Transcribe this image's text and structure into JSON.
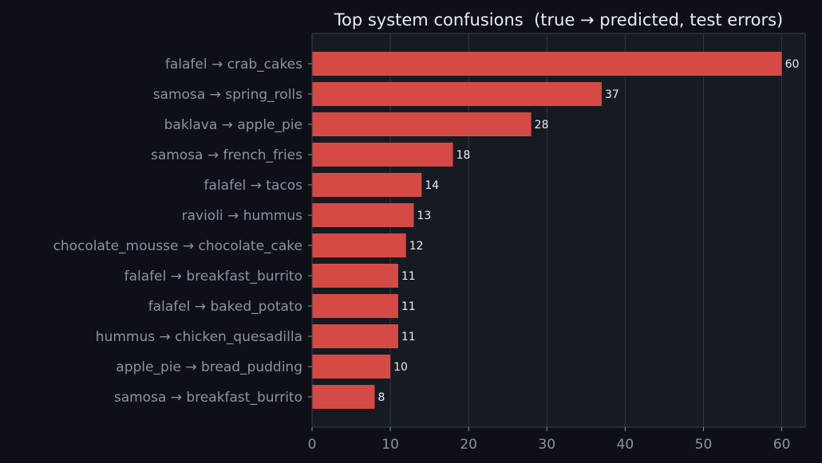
{
  "chart_data": {
    "type": "bar",
    "orientation": "horizontal",
    "title": "Top system confusions  (true → predicted, test errors)",
    "xlabel": "",
    "ylabel": "",
    "xlim": [
      0,
      63
    ],
    "xticks": [
      "0",
      "10",
      "20",
      "30",
      "40",
      "50",
      "60"
    ],
    "grid": "vertical",
    "categories": [
      "falafel → crab_cakes",
      "samosa → spring_rolls",
      "baklava → apple_pie",
      "samosa → french_fries",
      "falafel → tacos",
      "ravioli → hummus",
      "chocolate_mousse → chocolate_cake",
      "falafel → breakfast_burrito",
      "falafel → baked_potato",
      "hummus → chicken_quesadilla",
      "apple_pie → bread_pudding",
      "samosa → breakfast_burrito"
    ],
    "values": [
      60,
      37,
      28,
      18,
      14,
      13,
      12,
      11,
      11,
      11,
      10,
      8
    ],
    "value_labels": [
      "60",
      "37",
      "28",
      "18",
      "14",
      "13",
      "12",
      "11",
      "11",
      "11",
      "10",
      "8"
    ]
  },
  "colors": {
    "background": "#0d1117",
    "plot_background": "#161b22",
    "bar": "#d64a45",
    "grid": "#30363d",
    "axis": "#3a3f47",
    "title": "#e6edf3",
    "tick_label": "#8b949e",
    "value_label": "#e6edf3"
  }
}
